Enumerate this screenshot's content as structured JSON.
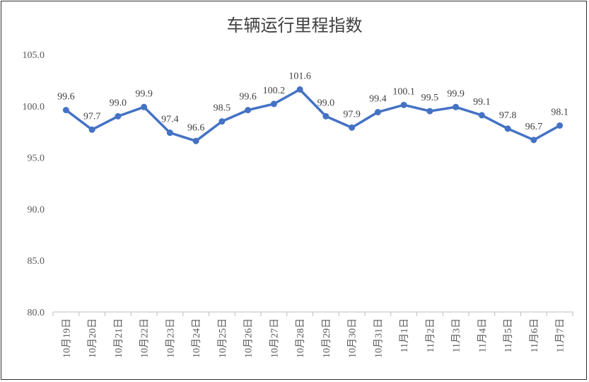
{
  "chart_data": {
    "type": "line",
    "title": "车辆运行里程指数",
    "categories": [
      "10月19日",
      "10月20日",
      "10月21日",
      "10月22日",
      "10月23日",
      "10月24日",
      "10月25日",
      "10月26日",
      "10月27日",
      "10月28日",
      "10月29日",
      "10月30日",
      "10月31日",
      "11月1日",
      "11月2日",
      "11月3日",
      "11月4日",
      "11月5日",
      "11月6日",
      "11月7日"
    ],
    "series": [
      {
        "values": [
          99.6,
          97.7,
          99.0,
          99.9,
          97.4,
          96.6,
          98.5,
          99.6,
          100.2,
          101.6,
          99.0,
          97.9,
          99.4,
          100.1,
          99.5,
          99.9,
          99.1,
          97.8,
          96.7,
          98.1
        ],
        "labels": [
          "99.6",
          "97.7",
          "99.0",
          "99.9",
          "97.4",
          "96.6",
          "98.5",
          "99.6",
          "100.2",
          "101.6",
          "99.0",
          "97.9",
          "99.4",
          "100.1",
          "99.5",
          "99.9",
          "99.1",
          "97.8",
          "96.7",
          "98.1"
        ]
      }
    ],
    "ylim": [
      80,
      105
    ],
    "yticks": [
      "80.0",
      "85.0",
      "90.0",
      "95.0",
      "100.0",
      "105.0"
    ],
    "line_color": "#4472C4",
    "grid": false
  }
}
